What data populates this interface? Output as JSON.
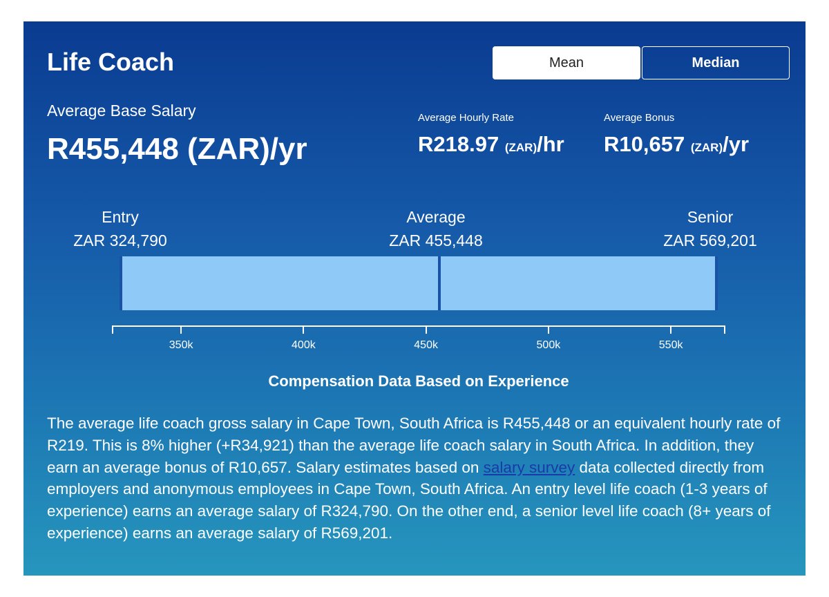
{
  "card": {
    "title": "Life Coach",
    "toggle": {
      "mean_label": "Mean",
      "median_label": "Median",
      "selected": "Mean"
    },
    "base_salary": {
      "label": "Average Base Salary",
      "value": "R455,448 (ZAR)/yr"
    },
    "hourly": {
      "label": "Average Hourly Rate",
      "amount": "R218.97",
      "currency": "(ZAR)",
      "period": "/hr"
    },
    "bonus": {
      "label": "Average Bonus",
      "amount": "R10,657",
      "currency": "(ZAR)",
      "period": "/yr"
    }
  },
  "chart_data": {
    "type": "bar",
    "title": "Compensation Data Based on Experience",
    "levels": [
      {
        "name": "Entry",
        "label": "ZAR 324,790",
        "value": 324790
      },
      {
        "name": "Average",
        "label": "ZAR 455,448",
        "value": 455448
      },
      {
        "name": "Senior",
        "label": "ZAR 569,201",
        "value": 569201
      }
    ],
    "ticks": [
      {
        "value": 350000,
        "label": "350k"
      },
      {
        "value": 400000,
        "label": "400k"
      },
      {
        "value": 450000,
        "label": "450k"
      },
      {
        "value": 500000,
        "label": "500k"
      },
      {
        "value": 550000,
        "label": "550k"
      }
    ],
    "xlim": [
      321750,
      572250
    ]
  },
  "description": {
    "text_before_link": "The average life coach gross salary in Cape Town, South Africa is R455,448 or an equivalent hourly rate of R219. This is 8% higher (+R34,921) than the average life coach salary in South Africa. In addition, they earn an average bonus of R10,657. Salary estimates based on ",
    "link_text": "salary survey",
    "text_after_link": " data collected directly from employers and anonymous employees in Cape Town, South Africa. An entry level life coach (1-3 years of experience) earns an average salary of R324,790. On the other end, a senior level life coach (8+ years of experience) earns an average salary of R569,201."
  }
}
